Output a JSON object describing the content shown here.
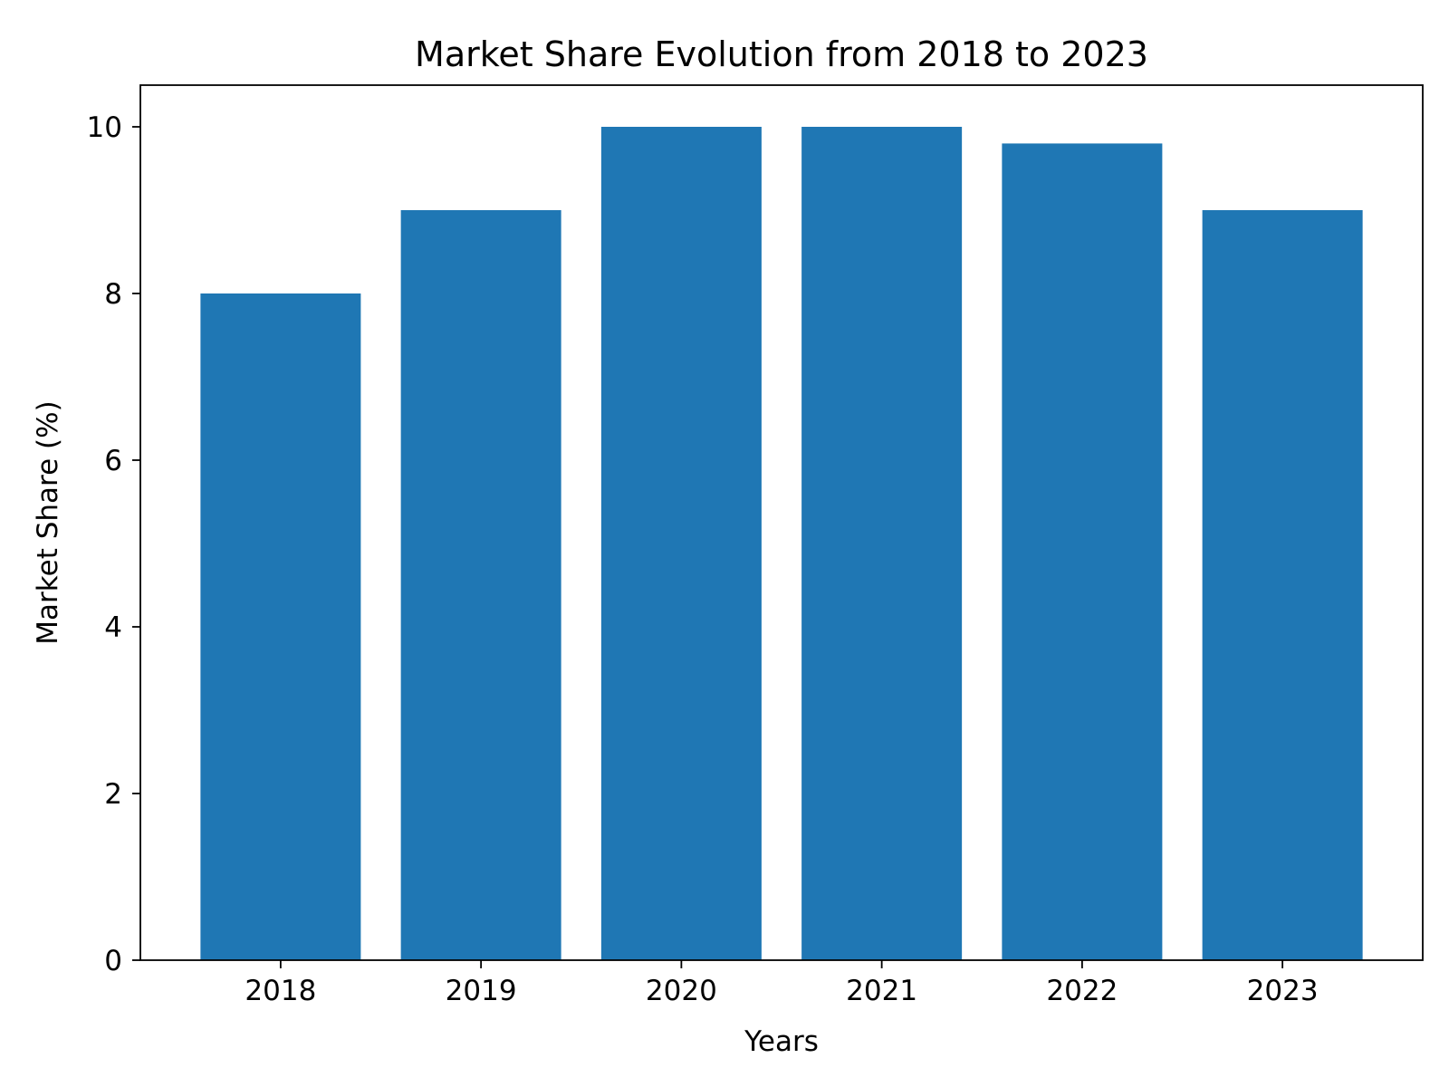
{
  "chart_data": {
    "type": "bar",
    "title": "Market Share Evolution from 2018 to 2023",
    "xlabel": "Years",
    "ylabel": "Market Share (%)",
    "categories": [
      "2018",
      "2019",
      "2020",
      "2021",
      "2022",
      "2023"
    ],
    "values": [
      8,
      9,
      10,
      10,
      9.8,
      9
    ],
    "ylim": [
      0,
      10.5
    ],
    "yticks": [
      0,
      2,
      4,
      6,
      8,
      10
    ],
    "grid": false,
    "legend": "none",
    "colors": {
      "bar": "#1f77b4"
    }
  }
}
